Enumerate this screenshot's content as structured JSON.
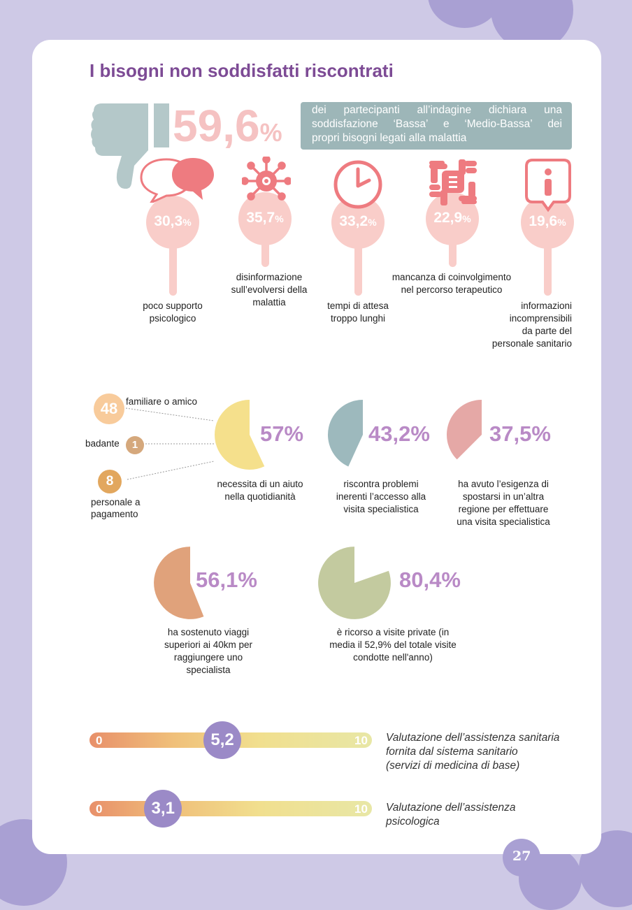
{
  "header": {
    "title": "I  bisogni non soddisfatti riscontrati"
  },
  "headline": {
    "value": "59,6",
    "unit": "%",
    "text_lines": [
      [
        "dei",
        "partecipanti",
        "all’indagine",
        "dichiara",
        "una"
      ],
      [
        "soddisfazione",
        "‘Bassa’",
        "e",
        "‘Medio-Bassa’",
        "dei"
      ],
      [
        "propri bisogni legati alla malattia"
      ]
    ]
  },
  "needs": [
    {
      "value": "30,3",
      "unit": "%",
      "icon": "speech-bubbles-icon",
      "label": "poco supporto\npsicologico"
    },
    {
      "value": "35,7",
      "unit": "%",
      "icon": "virus-icon",
      "label": "disinformazione\nsull’evolversi della\nmalattia"
    },
    {
      "value": "33,2",
      "unit": "%",
      "icon": "clock-icon",
      "label": "tempi di attesa\ntroppo lunghi"
    },
    {
      "value": "22,9",
      "unit": "%",
      "icon": "hands-icon",
      "label": "mancanza di coinvolgimento\nnel percorso terapeutico"
    },
    {
      "value": "19,6",
      "unit": "%",
      "icon": "info-icon",
      "label": "informazioni\nincomprensibili\nda parte del\npersonale sanitario"
    }
  ],
  "helpers": [
    {
      "count": "48",
      "label": "familiare o amico"
    },
    {
      "count": "1",
      "label": "badante"
    },
    {
      "count": "8",
      "label": "personale a\npagamento"
    }
  ],
  "stats": [
    {
      "value": "57%",
      "fraction": 0.57,
      "color": "#f5e08c",
      "label": "necessita di un aiuto\nnella quotidianità"
    },
    {
      "value": "43,2%",
      "fraction": 0.432,
      "color": "#9db9bd",
      "label": "riscontra problemi\ninerenti l’accesso alla\nvisita specialistica"
    },
    {
      "value": "37,5%",
      "fraction": 0.375,
      "color": "#e5a8a6",
      "label": "ha avuto l’esigenza di\nspostarsi in un’altra\nregione per effettuare\nuna visita specialistica"
    },
    {
      "value": "56,1%",
      "fraction": 0.561,
      "color": "#e0a27b",
      "label": "ha sostenuto viaggi\nsuperiori ai 40km per\nraggiungere uno\nspecialista"
    },
    {
      "value": "80,4%",
      "fraction": 0.804,
      "color": "#c3ca9f",
      "label": "è ricorso a visite private (in\nmedia il 52,9% del totale visite\ncondotte nell'anno)"
    }
  ],
  "ratings": [
    {
      "min": "0",
      "max": "10",
      "value": "5,2",
      "score": 5.2,
      "label": "Valutazione dell’assistenza sanitaria\nfornita dal sistema sanitario\n(servizi di medicina di base)"
    },
    {
      "min": "0",
      "max": "10",
      "value": "3,1",
      "score": 3.1,
      "label": "Valutazione dell’assistenza\npsicologica"
    }
  ],
  "page_number": "27",
  "colors": {
    "title": "#7d4b95",
    "percent": "#b98ac6",
    "pink": "#f9cdc9",
    "teal_banner": "#9db6b8",
    "knob": "#9b8ac7"
  }
}
